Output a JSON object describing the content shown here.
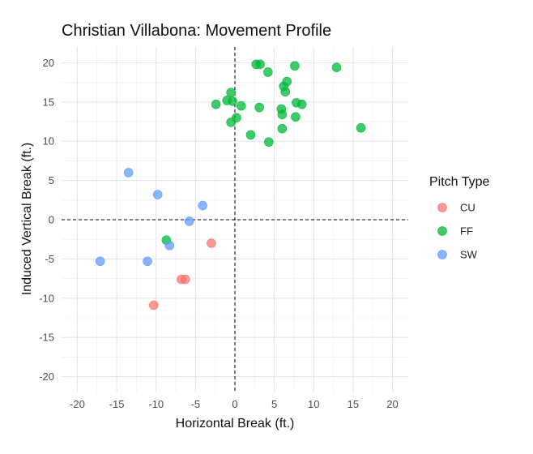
{
  "chart_data": {
    "type": "scatter",
    "title": "Christian Villabona: Movement Profile",
    "xlabel": "Horizontal Break (ft.)",
    "ylabel": "Induced Vertical Break (ft.)",
    "xlim": [
      -22,
      22
    ],
    "ylim": [
      -22,
      22
    ],
    "xticks": [
      -20,
      -15,
      -10,
      -5,
      0,
      5,
      10,
      15,
      20
    ],
    "yticks": [
      -20,
      -15,
      -10,
      -5,
      0,
      5,
      10,
      15,
      20
    ],
    "grid": true,
    "reference_lines": {
      "x": 0,
      "y": 0,
      "style": "dashed"
    },
    "legend": {
      "title": "Pitch Type",
      "placement": "right"
    },
    "series": [
      {
        "name": "CU",
        "color": "#F8766D",
        "points": [
          {
            "x": -3.0,
            "y": -3.0
          },
          {
            "x": -6.8,
            "y": -7.6
          },
          {
            "x": -6.3,
            "y": -7.6
          },
          {
            "x": -10.3,
            "y": -10.9
          }
        ]
      },
      {
        "name": "FF",
        "color": "#00BA38",
        "points": [
          {
            "x": 2.7,
            "y": 19.8
          },
          {
            "x": 3.2,
            "y": 19.8
          },
          {
            "x": 4.2,
            "y": 18.8
          },
          {
            "x": 7.6,
            "y": 19.6
          },
          {
            "x": 12.9,
            "y": 19.4
          },
          {
            "x": 6.6,
            "y": 17.6
          },
          {
            "x": 6.2,
            "y": 17.0
          },
          {
            "x": 6.4,
            "y": 16.3
          },
          {
            "x": -0.5,
            "y": 16.2
          },
          {
            "x": -1.0,
            "y": 15.2
          },
          {
            "x": -0.3,
            "y": 15.1
          },
          {
            "x": -2.4,
            "y": 14.7
          },
          {
            "x": 0.8,
            "y": 14.5
          },
          {
            "x": 3.1,
            "y": 14.3
          },
          {
            "x": 7.8,
            "y": 14.9
          },
          {
            "x": 8.5,
            "y": 14.7
          },
          {
            "x": 5.9,
            "y": 14.1
          },
          {
            "x": 6.0,
            "y": 13.4
          },
          {
            "x": 7.7,
            "y": 13.1
          },
          {
            "x": 0.2,
            "y": 13.0
          },
          {
            "x": -0.5,
            "y": 12.4
          },
          {
            "x": 6.0,
            "y": 11.6
          },
          {
            "x": 16.0,
            "y": 11.7
          },
          {
            "x": 2.0,
            "y": 10.8
          },
          {
            "x": 4.3,
            "y": 9.9
          },
          {
            "x": -8.7,
            "y": -2.6
          }
        ]
      },
      {
        "name": "SW",
        "color": "#619CFF",
        "points": [
          {
            "x": -13.5,
            "y": 6.0
          },
          {
            "x": -9.8,
            "y": 3.2
          },
          {
            "x": -4.1,
            "y": 1.8
          },
          {
            "x": -5.8,
            "y": -0.2
          },
          {
            "x": -8.3,
            "y": -3.3
          },
          {
            "x": -17.1,
            "y": -5.3
          },
          {
            "x": -11.1,
            "y": -5.3
          }
        ]
      }
    ]
  }
}
